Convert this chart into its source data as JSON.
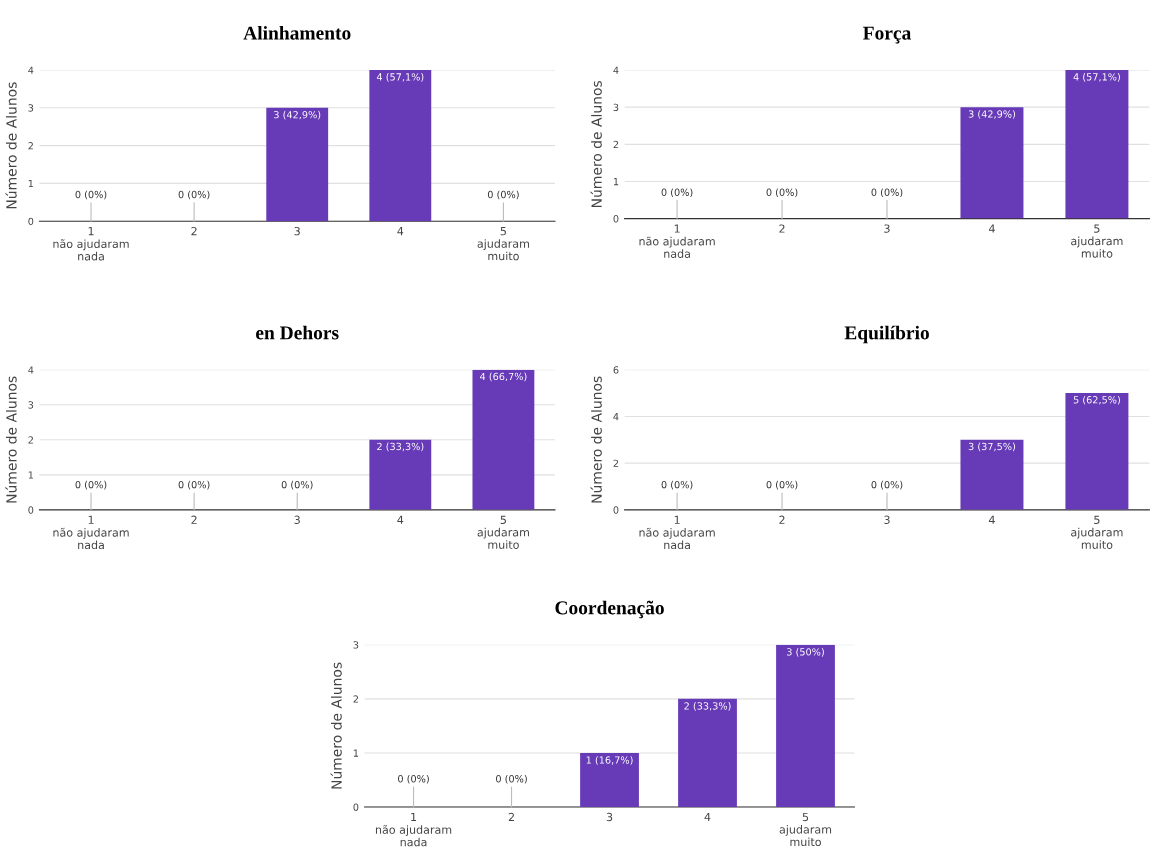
{
  "chart_data": [
    {
      "type": "bar",
      "title": "Alinhamento",
      "ylabel": "Número de Alunos",
      "categories": [
        "1\nnão ajudaram\nnada",
        "2",
        "3",
        "4",
        "5\najudaram\nmuito"
      ],
      "values": [
        0,
        0,
        3,
        4,
        0
      ],
      "value_labels": [
        "0 (0%)",
        "0 (0%)",
        "3 (42,9%)",
        "4 (57,1%)",
        "0 (0%)"
      ],
      "color": "#673ab7",
      "ylim": [
        0,
        4
      ],
      "yticks": [
        0,
        1,
        2,
        3,
        4
      ],
      "grid": "y",
      "legend": false
    },
    {
      "type": "bar",
      "title": "Força",
      "ylabel": "Número de Alunos",
      "categories": [
        "1\nnão ajudaram\nnada",
        "2",
        "3",
        "4",
        "5\najudaram\nmuito"
      ],
      "values": [
        0,
        0,
        0,
        3,
        4
      ],
      "value_labels": [
        "0 (0%)",
        "0 (0%)",
        "0 (0%)",
        "3 (42,9%)",
        "4 (57,1%)"
      ],
      "color": "#673ab7",
      "ylim": [
        0,
        4
      ],
      "yticks": [
        0,
        1,
        2,
        3,
        4
      ],
      "grid": "y",
      "legend": false
    },
    {
      "type": "bar",
      "title": "en Dehors",
      "ylabel": "Número de Alunos",
      "categories": [
        "1\nnão ajudaram\nnada",
        "2",
        "3",
        "4",
        "5\najudaram\nmuito"
      ],
      "values": [
        0,
        0,
        0,
        2,
        4
      ],
      "value_labels": [
        "0 (0%)",
        "0 (0%)",
        "0 (0%)",
        "2 (33,3%)",
        "4 (66,7%)"
      ],
      "color": "#673ab7",
      "ylim": [
        0,
        4
      ],
      "yticks": [
        0,
        1,
        2,
        3,
        4
      ],
      "grid": "y",
      "legend": false
    },
    {
      "type": "bar",
      "title": "Equilíbrio",
      "ylabel": "Número de Alunos",
      "categories": [
        "1\nnão ajudaram\nnada",
        "2",
        "3",
        "4",
        "5\najudaram\nmuito"
      ],
      "values": [
        0,
        0,
        0,
        3,
        5
      ],
      "value_labels": [
        "0 (0%)",
        "0 (0%)",
        "0 (0%)",
        "3 (37,5%)",
        "5 (62,5%)"
      ],
      "color": "#673ab7",
      "ylim": [
        0,
        6
      ],
      "yticks": [
        0,
        2,
        4,
        6
      ],
      "grid": "y",
      "legend": false
    },
    {
      "type": "bar",
      "title": "Coordenação",
      "ylabel": "Número de Alunos",
      "categories": [
        "1\nnão ajudaram\nnada",
        "2",
        "3",
        "4",
        "5\najudaram\nmuito"
      ],
      "values": [
        0,
        0,
        1,
        2,
        3
      ],
      "value_labels": [
        "0 (0%)",
        "0 (0%)",
        "1 (16,7%)",
        "2 (33,3%)",
        "3 (50%)"
      ],
      "color": "#673ab7",
      "ylim": [
        0,
        3
      ],
      "yticks": [
        0,
        1,
        2,
        3
      ],
      "grid": "y",
      "legend": false
    }
  ]
}
